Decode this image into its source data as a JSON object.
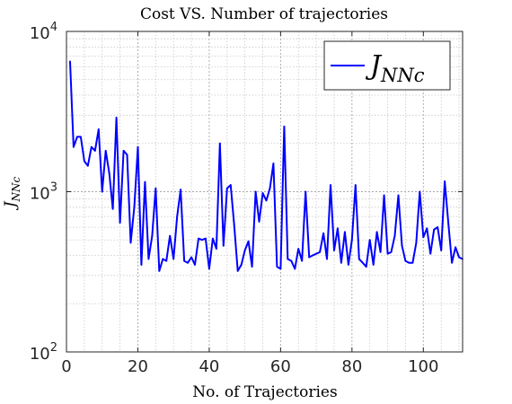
{
  "chart_data": {
    "type": "line",
    "title": "Cost VS. Number of trajectories",
    "xlabel": "No. of Trajectories",
    "ylabel": {
      "base": "J",
      "sub": "NNc"
    },
    "xlim": [
      0,
      111
    ],
    "ylim": [
      100,
      10000
    ],
    "yscale": "log",
    "grid": true,
    "legend_position": "top-right",
    "x_ticks": [
      0,
      20,
      40,
      60,
      80,
      100
    ],
    "y_ticks": [
      {
        "value": 100,
        "base": "10",
        "exp": "2"
      },
      {
        "value": 1000,
        "base": "10",
        "exp": "3"
      },
      {
        "value": 10000,
        "base": "10",
        "exp": "4"
      }
    ],
    "series": [
      {
        "name": "J_NNc",
        "legend": {
          "base": "J",
          "sub": "NNc"
        },
        "color": "#0000ff",
        "x": [
          1,
          2,
          3,
          4,
          5,
          6,
          7,
          8,
          9,
          10,
          11,
          12,
          13,
          14,
          15,
          16,
          17,
          18,
          19,
          20,
          21,
          22,
          23,
          24,
          25,
          26,
          27,
          28,
          29,
          30,
          31,
          32,
          33,
          34,
          35,
          36,
          37,
          38,
          39,
          40,
          41,
          42,
          43,
          44,
          45,
          46,
          47,
          48,
          49,
          50,
          51,
          52,
          53,
          54,
          55,
          56,
          57,
          58,
          59,
          60,
          61,
          62,
          63,
          64,
          65,
          66,
          67,
          68,
          69,
          70,
          71,
          72,
          73,
          74,
          75,
          76,
          77,
          78,
          79,
          80,
          81,
          82,
          83,
          84,
          85,
          86,
          87,
          88,
          89,
          90,
          91,
          92,
          93,
          94,
          95,
          96,
          97,
          98,
          99,
          100,
          101,
          102,
          103,
          104,
          105,
          106,
          107,
          108,
          109,
          110,
          111
        ],
        "y": [
          6500,
          1900,
          2200,
          2200,
          1550,
          1450,
          1900,
          1800,
          2450,
          1000,
          1800,
          1300,
          780,
          2900,
          640,
          1800,
          1700,
          480,
          800,
          1900,
          350,
          1150,
          380,
          530,
          1050,
          320,
          380,
          370,
          530,
          380,
          700,
          1030,
          370,
          360,
          390,
          350,
          510,
          500,
          510,
          330,
          510,
          440,
          2000,
          460,
          1050,
          1100,
          620,
          320,
          350,
          430,
          490,
          340,
          1000,
          650,
          980,
          880,
          1050,
          1500,
          340,
          330,
          2550,
          380,
          370,
          330,
          440,
          370,
          1000,
          390,
          400,
          410,
          420,
          550,
          380,
          1100,
          430,
          590,
          360,
          560,
          350,
          500,
          1100,
          380,
          360,
          340,
          500,
          350,
          560,
          420,
          950,
          410,
          420,
          530,
          950,
          460,
          370,
          360,
          360,
          480,
          1000,
          520,
          590,
          410,
          580,
          600,
          430,
          1160,
          640,
          360,
          450,
          390,
          380
        ]
      }
    ]
  }
}
